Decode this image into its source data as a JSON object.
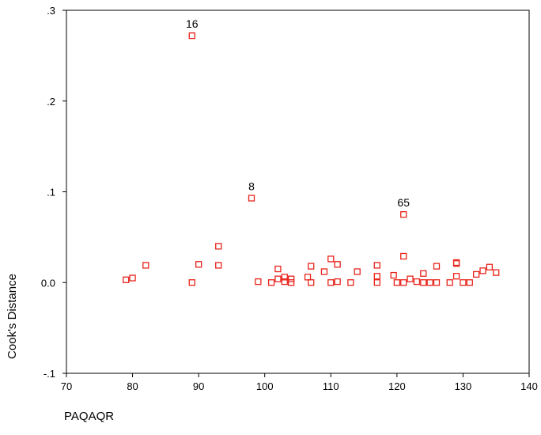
{
  "chart_data": {
    "type": "scatter",
    "title": "",
    "xlabel": "PAQAQR",
    "ylabel": "Cook's Distance",
    "xlim": [
      70,
      140
    ],
    "ylim": [
      -0.1,
      0.3
    ],
    "x_ticks": [
      {
        "value": 70,
        "label": "70"
      },
      {
        "value": 80,
        "label": "80"
      },
      {
        "value": 90,
        "label": "90"
      },
      {
        "value": 100,
        "label": "100"
      },
      {
        "value": 110,
        "label": "110"
      },
      {
        "value": 120,
        "label": "120"
      },
      {
        "value": 130,
        "label": "130"
      },
      {
        "value": 140,
        "label": "140"
      }
    ],
    "y_ticks": [
      {
        "value": -0.1,
        "label": "-.1"
      },
      {
        "value": 0.0,
        "label": "0.0"
      },
      {
        "value": 0.1,
        "label": ".1"
      },
      {
        "value": 0.2,
        "label": ".2"
      },
      {
        "value": 0.3,
        "label": ".3"
      }
    ],
    "grid": false,
    "marker": "hollow-square",
    "marker_color": "#e8231a",
    "points": [
      {
        "x": 79,
        "y": 0.003
      },
      {
        "x": 80,
        "y": 0.005
      },
      {
        "x": 82,
        "y": 0.019
      },
      {
        "x": 89,
        "y": 0.272,
        "label": "16"
      },
      {
        "x": 89,
        "y": 0.0
      },
      {
        "x": 90,
        "y": 0.02
      },
      {
        "x": 93,
        "y": 0.04
      },
      {
        "x": 93,
        "y": 0.019
      },
      {
        "x": 98,
        "y": 0.093,
        "label": "8"
      },
      {
        "x": 99,
        "y": 0.001
      },
      {
        "x": 101,
        "y": 0.0
      },
      {
        "x": 102,
        "y": 0.015
      },
      {
        "x": 102,
        "y": 0.004
      },
      {
        "x": 103,
        "y": 0.006
      },
      {
        "x": 103,
        "y": 0.001
      },
      {
        "x": 104,
        "y": 0.004
      },
      {
        "x": 104,
        "y": 0.0
      },
      {
        "x": 106.5,
        "y": 0.006
      },
      {
        "x": 107,
        "y": 0.018
      },
      {
        "x": 107,
        "y": 0.0
      },
      {
        "x": 109,
        "y": 0.012
      },
      {
        "x": 110,
        "y": 0.026
      },
      {
        "x": 110,
        "y": 0.0
      },
      {
        "x": 111,
        "y": 0.02
      },
      {
        "x": 111,
        "y": 0.001
      },
      {
        "x": 113,
        "y": 0.0
      },
      {
        "x": 114,
        "y": 0.012
      },
      {
        "x": 117,
        "y": 0.019
      },
      {
        "x": 117,
        "y": 0.007
      },
      {
        "x": 117,
        "y": 0.0
      },
      {
        "x": 119.5,
        "y": 0.008
      },
      {
        "x": 120,
        "y": 0.0
      },
      {
        "x": 121,
        "y": 0.075,
        "label": "65"
      },
      {
        "x": 121,
        "y": 0.029
      },
      {
        "x": 121,
        "y": 0.0
      },
      {
        "x": 122,
        "y": 0.004
      },
      {
        "x": 123,
        "y": 0.001
      },
      {
        "x": 124,
        "y": 0.01
      },
      {
        "x": 124,
        "y": 0.0
      },
      {
        "x": 125,
        "y": 0.0
      },
      {
        "x": 126,
        "y": 0.018
      },
      {
        "x": 126,
        "y": 0.0
      },
      {
        "x": 128,
        "y": 0.0
      },
      {
        "x": 129,
        "y": 0.022
      },
      {
        "x": 129,
        "y": 0.021
      },
      {
        "x": 129,
        "y": 0.007
      },
      {
        "x": 130,
        "y": 0.0
      },
      {
        "x": 131,
        "y": 0.0
      },
      {
        "x": 132,
        "y": 0.009
      },
      {
        "x": 133,
        "y": 0.013
      },
      {
        "x": 134,
        "y": 0.017
      },
      {
        "x": 135,
        "y": 0.011
      }
    ]
  }
}
